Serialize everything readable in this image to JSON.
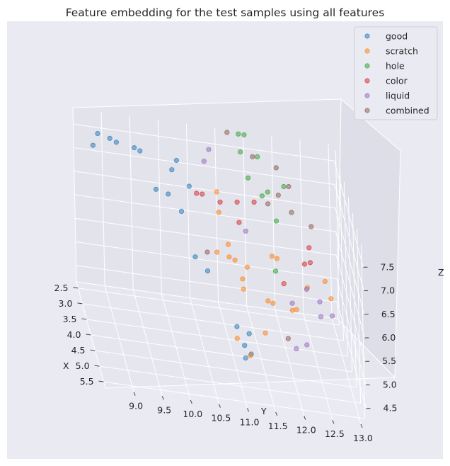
{
  "chart_data": {
    "type": "scatter",
    "projection": "3d",
    "title": "Feature embedding for the test samples using all features",
    "xlabel": "X",
    "ylabel": "Y",
    "zlabel": "Z",
    "xlim": [
      2.3,
      5.7
    ],
    "ylim": [
      8.5,
      13.1
    ],
    "zlim": [
      4.15,
      7.85
    ],
    "x_ticks": [
      "2.5",
      "3.0",
      "3.5",
      "4.0",
      "4.5",
      "5.0",
      "5.5"
    ],
    "y_ticks": [
      "9.0",
      "9.5",
      "10.0",
      "10.5",
      "11.0",
      "11.5",
      "12.0",
      "12.5",
      "13.0"
    ],
    "z_ticks": [
      "4.5",
      "5.0",
      "5.5",
      "6.0",
      "6.5",
      "7.0",
      "7.5"
    ],
    "grid": true,
    "legend_position": "top-right",
    "background_color": "#eaeaf2",
    "series": [
      {
        "name": "good",
        "color": "#1f77b4",
        "points": [
          [
            2.5,
            8.9,
            7.5
          ],
          [
            2.6,
            8.8,
            7.3
          ],
          [
            2.6,
            9.1,
            7.5
          ],
          [
            2.7,
            9.2,
            7.5
          ],
          [
            2.8,
            9.5,
            7.5
          ],
          [
            2.8,
            9.6,
            7.45
          ],
          [
            3.1,
            10.2,
            7.55
          ],
          [
            3.2,
            10.1,
            7.4
          ],
          [
            3.3,
            9.8,
            7.0
          ],
          [
            3.4,
            10.0,
            7.0
          ],
          [
            3.2,
            10.4,
            7.1
          ],
          [
            3.6,
            10.2,
            6.8
          ],
          [
            3.8,
            10.4,
            6.0
          ],
          [
            3.9,
            10.6,
            5.8
          ],
          [
            4.6,
            11.0,
            5.15
          ],
          [
            4.7,
            11.2,
            5.1
          ],
          [
            4.8,
            11.1,
            4.9
          ],
          [
            4.9,
            11.2,
            4.8
          ],
          [
            4.9,
            11.1,
            4.7
          ]
        ]
      },
      {
        "name": "scratch",
        "color": "#ff7f0e",
        "points": [
          [
            3.1,
            10.9,
            7.0
          ],
          [
            3.3,
            10.9,
            6.7
          ],
          [
            3.7,
            11.0,
            6.3
          ],
          [
            3.7,
            10.8,
            6.1
          ],
          [
            3.8,
            11.0,
            6.1
          ],
          [
            3.8,
            11.1,
            6.05
          ],
          [
            3.9,
            11.3,
            6.0
          ],
          [
            4.0,
            11.2,
            5.8
          ],
          [
            4.1,
            11.2,
            5.65
          ],
          [
            4.1,
            11.8,
            6.4
          ],
          [
            4.2,
            11.7,
            6.5
          ],
          [
            4.3,
            11.6,
            5.6
          ],
          [
            4.2,
            11.7,
            5.5
          ],
          [
            4.3,
            12.1,
            5.5
          ],
          [
            4.3,
            12.3,
            6.0
          ],
          [
            4.4,
            12.6,
            6.25
          ],
          [
            4.4,
            12.7,
            5.9
          ],
          [
            4.5,
            12.0,
            5.6
          ],
          [
            4.6,
            11.5,
            5.1
          ],
          [
            4.6,
            11.0,
            4.9
          ],
          [
            4.8,
            11.2,
            4.7
          ]
        ]
      },
      {
        "name": "hole",
        "color": "#2ca02c",
        "points": [
          [
            2.4,
            11.4,
            7.85
          ],
          [
            2.4,
            11.5,
            7.85
          ],
          [
            2.6,
            11.4,
            7.6
          ],
          [
            2.8,
            11.5,
            7.2
          ],
          [
            2.6,
            11.7,
            7.55
          ],
          [
            3.1,
            11.7,
            7.05
          ],
          [
            3.1,
            11.8,
            7.15
          ],
          [
            3.0,
            12.1,
            7.25
          ],
          [
            3.4,
            11.9,
            6.75
          ],
          [
            3.9,
            11.8,
            6.0
          ]
        ]
      },
      {
        "name": "color",
        "color": "#d62728",
        "points": [
          [
            3.4,
            10.5,
            7.1
          ],
          [
            3.4,
            10.6,
            7.1
          ],
          [
            3.5,
            10.9,
            7.05
          ],
          [
            3.5,
            11.2,
            7.1
          ],
          [
            3.5,
            11.5,
            7.15
          ],
          [
            3.7,
            11.2,
            6.8
          ],
          [
            3.9,
            12.4,
            6.6
          ],
          [
            4.0,
            12.3,
            6.3
          ],
          [
            4.0,
            12.4,
            6.35
          ],
          [
            4.2,
            11.9,
            5.95
          ]
        ]
      },
      {
        "name": "liquid",
        "color": "#9467bd",
        "points": [
          [
            2.9,
            10.8,
            7.75
          ],
          [
            3.0,
            10.7,
            7.55
          ],
          [
            3.8,
            11.3,
            6.7
          ],
          [
            4.2,
            12.3,
            5.9
          ],
          [
            4.4,
            12.5,
            5.8
          ],
          [
            4.5,
            12.7,
            5.6
          ],
          [
            4.5,
            12.5,
            5.55
          ],
          [
            4.5,
            12.0,
            5.75
          ],
          [
            4.8,
            12.2,
            5.1
          ],
          [
            4.9,
            12.0,
            5.05
          ]
        ]
      },
      {
        "name": "combined",
        "color": "#8c564b",
        "points": [
          [
            2.4,
            11.2,
            7.85
          ],
          [
            2.7,
            11.6,
            7.6
          ],
          [
            2.8,
            12.0,
            7.5
          ],
          [
            2.9,
            12.2,
            7.2
          ],
          [
            3.0,
            12.0,
            7.05
          ],
          [
            3.1,
            11.8,
            6.9
          ],
          [
            3.2,
            12.2,
            6.85
          ],
          [
            3.5,
            12.5,
            6.8
          ],
          [
            3.9,
            10.6,
            6.2
          ],
          [
            4.6,
            11.9,
            5.05
          ]
        ]
      }
    ]
  }
}
